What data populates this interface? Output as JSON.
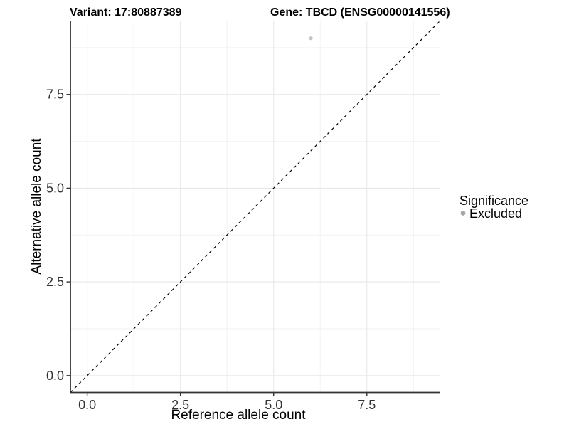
{
  "chart_data": {
    "type": "scatter",
    "titles": {
      "variant": "Variant: 17:80887389",
      "gene": "Gene: TBCD (ENSG00000141556)"
    },
    "xlabel": "Reference allele count",
    "ylabel": "Alternative allele count",
    "xlim": [
      -0.45,
      9.45
    ],
    "ylim": [
      -0.45,
      9.45
    ],
    "x_ticks": {
      "values": [
        0,
        2.5,
        5,
        7.5
      ],
      "labels": [
        "0.0",
        "2.5",
        "5.0",
        "7.5"
      ]
    },
    "y_ticks": {
      "values": [
        0,
        2.5,
        5,
        7.5
      ],
      "labels": [
        "0.0",
        "2.5",
        "5.0",
        "7.5"
      ]
    },
    "x_minor": [
      1.25,
      3.75,
      6.25,
      8.75
    ],
    "y_minor": [
      1.25,
      3.75,
      6.25,
      8.75
    ],
    "grid": true,
    "points": [
      {
        "x": 6,
        "y": 9,
        "significance": "Excluded"
      }
    ],
    "reference_line": {
      "slope": 1,
      "intercept": 0,
      "style": "dashed"
    },
    "legend": {
      "title": "Significance",
      "position": "right",
      "entries": [
        {
          "label": "Excluded",
          "color": "#a8a8a8"
        }
      ]
    },
    "colors": {
      "background": "#ffffff",
      "point": "#c3c3c3",
      "legend_key": "#a8a8a8",
      "grid_major": "#e8e8e8",
      "grid_minor": "#f2f2f2",
      "axis_line": "#333333",
      "tick_mark": "#333333",
      "tick_label": "#333333",
      "ref_line": "#000000"
    }
  }
}
